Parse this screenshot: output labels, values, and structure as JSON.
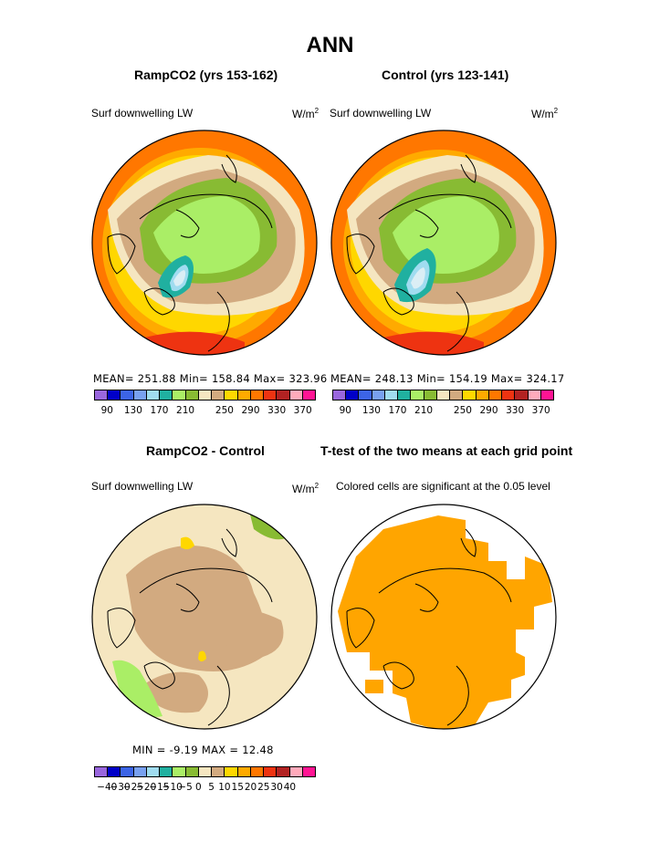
{
  "main_title": "ANN",
  "colors": {
    "scale_a": [
      "#9966dd",
      "#0000c8",
      "#3c64e6",
      "#78a0f0",
      "#a0dcf0",
      "#20b0a0",
      "#aaee66",
      "#88bb33",
      "#f5e6c0",
      "#d2aa80",
      "#ffd700",
      "#ffaa00",
      "#ff7700",
      "#ee3311",
      "#b22222",
      "#ffaabb",
      "#ff1493"
    ],
    "scale_b": [
      "#9966dd",
      "#0000c8",
      "#3c64e6",
      "#78a0f0",
      "#a0dcf0",
      "#20b0a0",
      "#aaee66",
      "#88bb33",
      "#f5e6c0",
      "#d2aa80",
      "#ffd700",
      "#ffaa00",
      "#ff7700",
      "#ee3311",
      "#b22222",
      "#ffaabb",
      "#ff1493"
    ],
    "significant": "#ffa500"
  },
  "panels": {
    "ramp": {
      "title": "RampCO2 (yrs 153-162)",
      "variable": "Surf downwelling LW",
      "units": "W/m",
      "units_exp": "2",
      "stats": "MEAN= 251.88  Min= 158.84  Max= 323.96"
    },
    "control": {
      "title": "Control (yrs 123-141)",
      "variable": "Surf downwelling LW",
      "units": "W/m",
      "units_exp": "2",
      "stats": "MEAN= 248.13  Min= 154.19  Max= 324.17"
    },
    "diff": {
      "title": "RampCO2 - Control",
      "variable": "Surf downwelling LW",
      "units": "W/m",
      "units_exp": "2",
      "stats": "MIN =   -9.19  MAX =   12.48"
    },
    "ttest": {
      "title": "T-test of the two means at each grid point",
      "subtitle": "Colored cells are significant at the 0.05 level"
    }
  },
  "colorbars": {
    "ramp_labels": [
      "90",
      "130",
      "170",
      "210",
      "250",
      "290",
      "330",
      "370"
    ],
    "control_labels": [
      "90",
      "130",
      "170",
      "210",
      "250",
      "290",
      "330",
      "370"
    ],
    "diff_labels": [
      "−40",
      "−30",
      "−25",
      "−20",
      "−15",
      "−10",
      "−5",
      "0",
      "5",
      "10",
      "15",
      "20",
      "25",
      "30",
      "40"
    ]
  }
}
